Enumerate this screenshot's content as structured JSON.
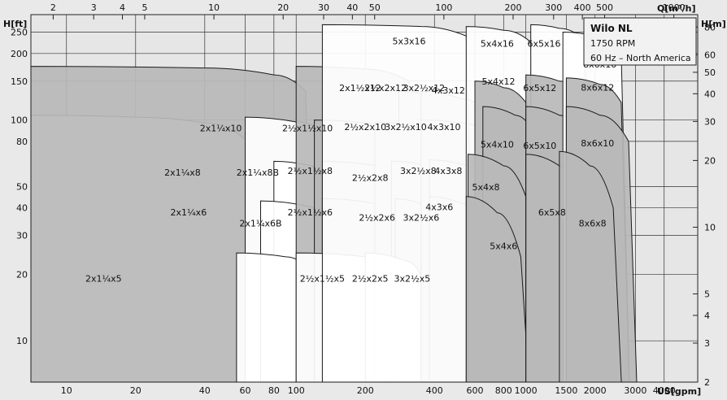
{
  "chart_data": {
    "type": "pump-performance-range",
    "legend": {
      "title": "Wilo NL",
      "lines": [
        "1750 RPM",
        "60 Hz – North America"
      ]
    },
    "axes": {
      "x_bottom": {
        "label": "US[gpm]",
        "scale": "log",
        "range": [
          7,
          5600
        ],
        "ticks": [
          "10",
          "20",
          "40",
          "60",
          "80",
          "100",
          "200",
          "400",
          "600",
          "800",
          "1000",
          "1500",
          "2000",
          "3000",
          "4000"
        ]
      },
      "x_top": {
        "label": "Q[m³/h]",
        "scale": "log",
        "range": [
          1.6,
          1270
        ],
        "ticks": [
          "2",
          "3",
          "4",
          "5",
          "10",
          "20",
          "30",
          "40",
          "50",
          "100",
          "200",
          "300",
          "400",
          "500",
          "1000"
        ]
      },
      "y_left": {
        "label": "H[ft]",
        "scale": "log",
        "range": [
          6.5,
          300
        ],
        "ticks": [
          "250",
          "200",
          "150",
          "100",
          "80",
          "50",
          "40",
          "30",
          "20",
          "10"
        ]
      },
      "y_right": {
        "label": "H[m]",
        "scale": "log",
        "range": [
          2,
          91
        ],
        "ticks": [
          "80",
          "60",
          "50",
          "40",
          "30",
          "20",
          "10",
          "5",
          "4",
          "3",
          "2"
        ]
      }
    },
    "series": [
      {
        "name": "2x1¼x5",
        "q": [
          7,
          14,
          22,
          30
        ],
        "h": [
          14.5,
          13,
          10,
          6.7
        ],
        "fill": "white",
        "lx": 14.5,
        "ly": 18.5
      },
      {
        "name": "2x1¼x6B",
        "q": [
          7,
          16,
          28,
          48
        ],
        "h": [
          31,
          30,
          28,
          21
        ],
        "fill": "white",
        "lx": 70,
        "ly": 33
      },
      {
        "name": "2x1¼x6",
        "q": [
          7,
          16,
          28,
          48
        ],
        "h": [
          43,
          42,
          40,
          35
        ],
        "fill": "white",
        "lx": 34,
        "ly": 37
      },
      {
        "name": "2x1¼x8B",
        "q": [
          7,
          20,
          38,
          52
        ],
        "h": [
          62,
          60,
          55,
          46
        ],
        "fill": "white",
        "lx": 68,
        "ly": 56
      },
      {
        "name": "2x1¼x8",
        "q": [
          7,
          16,
          32,
          46
        ],
        "h": [
          72,
          71,
          66,
          57
        ],
        "fill": "white",
        "lx": 32,
        "ly": 56
      },
      {
        "name": "2x1¼x10",
        "q": [
          7,
          20,
          40,
          60
        ],
        "h": [
          105,
          103,
          97,
          82
        ],
        "fill": "white",
        "lx": 47,
        "ly": 89
      },
      {
        "name": "2x1½x12",
        "q": [
          7,
          40,
          80,
          110
        ],
        "h": [
          175,
          172,
          160,
          135
        ],
        "fill": "gray",
        "lx": 190,
        "ly": 135
      },
      {
        "name": "2½x1½x10",
        "q": [
          60,
          100,
          140
        ],
        "h": [
          103,
          98,
          85
        ],
        "fill": "white",
        "lx": 112,
        "ly": 89
      },
      {
        "name": "2½x1½x8",
        "q": [
          80,
          130,
          180
        ],
        "h": [
          65,
          60,
          52
        ],
        "fill": "white",
        "lx": 115,
        "ly": 57
      },
      {
        "name": "2½x1½x6",
        "q": [
          70,
          120,
          160
        ],
        "h": [
          43,
          40,
          35
        ],
        "fill": "white",
        "lx": 115,
        "ly": 37
      },
      {
        "name": "2½x1½x5",
        "q": [
          55,
          90,
          120
        ],
        "h": [
          25,
          24,
          20
        ],
        "fill": "white",
        "lx": 130,
        "ly": 18.5
      },
      {
        "name": "2½x2x12",
        "q": [
          100,
          200,
          310
        ],
        "h": [
          175,
          170,
          150
        ],
        "fill": "gray",
        "lx": 245,
        "ly": 135
      },
      {
        "name": "2½x2x10",
        "q": [
          120,
          230,
          330
        ],
        "h": [
          100,
          95,
          80
        ],
        "fill": "gray",
        "lx": 200,
        "ly": 90
      },
      {
        "name": "2½x2x8",
        "q": [
          130,
          260,
          370
        ],
        "h": [
          65,
          60,
          48
        ],
        "fill": "gray",
        "lx": 210,
        "ly": 53
      },
      {
        "name": "2½x2x6",
        "q": [
          130,
          270,
          380
        ],
        "h": [
          44,
          40,
          32
        ],
        "fill": "gray",
        "lx": 225,
        "ly": 35
      },
      {
        "name": "2½x2x5",
        "q": [
          100,
          200,
          270
        ],
        "h": [
          25,
          24,
          18
        ],
        "fill": "white",
        "lx": 210,
        "ly": 18.5
      },
      {
        "name": "3x2½x12",
        "q": [
          280,
          420,
          530
        ],
        "h": [
          135,
          125,
          105
        ],
        "fill": "gray",
        "lx": 360,
        "ly": 135
      },
      {
        "name": "3x2½x10",
        "q": [
          220,
          340,
          460
        ],
        "h": [
          98,
          92,
          80
        ],
        "fill": "gray",
        "lx": 300,
        "ly": 90
      },
      {
        "name": "3x2½x8",
        "q": [
          260,
          420,
          560
        ],
        "h": [
          65,
          60,
          45
        ],
        "fill": "gray",
        "lx": 340,
        "ly": 57
      },
      {
        "name": "3x2½x6",
        "q": [
          270,
          380,
          480
        ],
        "h": [
          44,
          40,
          30
        ],
        "fill": "gray",
        "lx": 350,
        "ly": 35
      },
      {
        "name": "3x2½x5",
        "q": [
          200,
          300,
          380
        ],
        "h": [
          25,
          23,
          16
        ],
        "fill": "white",
        "lx": 320,
        "ly": 18.5
      },
      {
        "name": "4x3x12",
        "q": [
          350,
          520,
          700
        ],
        "h": [
          135,
          125,
          105
        ],
        "fill": "gray",
        "lx": 460,
        "ly": 132
      },
      {
        "name": "4x3x10",
        "q": [
          350,
          600,
          780
        ],
        "h": [
          100,
          95,
          78
        ],
        "fill": "gray",
        "lx": 440,
        "ly": 90
      },
      {
        "name": "4x3x8",
        "q": [
          380,
          560,
          700
        ],
        "h": [
          66,
          62,
          50
        ],
        "fill": "gray",
        "lx": 460,
        "ly": 57
      },
      {
        "name": "4x3x6",
        "q": [
          380,
          520,
          650
        ],
        "h": [
          45,
          42,
          30
        ],
        "fill": "gray",
        "lx": 420,
        "ly": 39
      },
      {
        "name": "5x3x16",
        "q": [
          130,
          350,
          550
        ],
        "h": [
          270,
          265,
          240
        ],
        "fill": "white",
        "lx": 310,
        "ly": 220
      },
      {
        "name": "5x4x16",
        "q": [
          550,
          800,
          1050
        ],
        "h": [
          265,
          255,
          225
        ],
        "fill": "white",
        "lx": 750,
        "ly": 215
      },
      {
        "name": "5x4x12",
        "q": [
          600,
          800,
          1000
        ],
        "h": [
          150,
          140,
          120
        ],
        "fill": "gray",
        "lx": 760,
        "ly": 145
      },
      {
        "name": "5x4x10",
        "q": [
          650,
          900,
          1100
        ],
        "h": [
          115,
          105,
          85
        ],
        "fill": "gray",
        "lx": 750,
        "ly": 75
      },
      {
        "name": "5x4x8",
        "q": [
          560,
          800,
          1000
        ],
        "h": [
          70,
          62,
          45
        ],
        "fill": "gray",
        "lx": 670,
        "ly": 48
      },
      {
        "name": "5x4x6",
        "q": [
          550,
          750,
          950
        ],
        "h": [
          45,
          38,
          24
        ],
        "fill": "gray",
        "lx": 800,
        "ly": 26
      },
      {
        "name": "6x5x16",
        "q": [
          1050,
          1400,
          1800
        ],
        "h": [
          270,
          260,
          230
        ],
        "fill": "white",
        "lx": 1200,
        "ly": 215
      },
      {
        "name": "6x5x12",
        "q": [
          1000,
          1400,
          1900
        ],
        "h": [
          160,
          150,
          120
        ],
        "fill": "gray",
        "lx": 1150,
        "ly": 135
      },
      {
        "name": "6x5x10",
        "q": [
          1000,
          1400,
          1800
        ],
        "h": [
          115,
          105,
          80
        ],
        "fill": "gray",
        "lx": 1150,
        "ly": 74
      },
      {
        "name": "6x5x8",
        "q": [
          1000,
          1400,
          1700
        ],
        "h": [
          70,
          62,
          45
        ],
        "fill": "gray",
        "lx": 1300,
        "ly": 37
      },
      {
        "name": "8x6x16",
        "q": [
          1450,
          2000,
          2600
        ],
        "h": [
          250,
          240,
          200
        ],
        "fill": "white",
        "lx": 2100,
        "ly": 173
      },
      {
        "name": "8x6x12",
        "q": [
          1500,
          2100,
          2600
        ],
        "h": [
          155,
          145,
          120
        ],
        "fill": "gray",
        "lx": 2050,
        "ly": 136
      },
      {
        "name": "8x6x10",
        "q": [
          1500,
          2100,
          2800
        ],
        "h": [
          115,
          105,
          80
        ],
        "fill": "gray",
        "lx": 2050,
        "ly": 76
      },
      {
        "name": "8x6x8",
        "q": [
          1400,
          1900,
          2400
        ],
        "h": [
          72,
          62,
          40
        ],
        "fill": "gray",
        "lx": 1950,
        "ly": 33
      }
    ]
  }
}
